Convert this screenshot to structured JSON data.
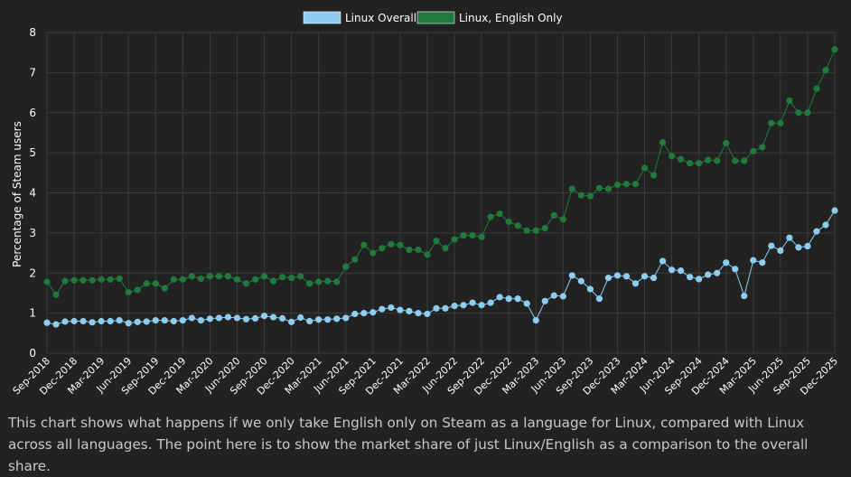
{
  "caption": "This chart shows what happens if we only take English only on Steam as a language for Linux, compared with Linux across all languages. The point here is to show the market share of just Linux/English as a comparison to the overall share.",
  "colors": {
    "background": "#222222",
    "grid": "#3a3a3a",
    "text": "#ffffff",
    "series_overall": "#8ecdf2",
    "series_english": "#1f7a3c"
  },
  "chart_data": {
    "type": "line",
    "title": "",
    "xlabel": "",
    "ylabel": "Percentage of Steam users",
    "ylim": [
      0,
      8
    ],
    "yticks": [
      "0",
      "1",
      "2",
      "3",
      "4",
      "5",
      "6",
      "7",
      "8"
    ],
    "grid": true,
    "legend_position": "top-center",
    "x": [
      "Sep-2018",
      "Oct-2018",
      "Nov-2018",
      "Dec-2018",
      "Jan-2019",
      "Feb-2019",
      "Mar-2019",
      "Apr-2019",
      "May-2019",
      "Jun-2019",
      "Jul-2019",
      "Aug-2019",
      "Sep-2019",
      "Oct-2019",
      "Nov-2019",
      "Dec-2019",
      "Jan-2020",
      "Feb-2020",
      "Mar-2020",
      "Apr-2020",
      "May-2020",
      "Jun-2020",
      "Jul-2020",
      "Aug-2020",
      "Sep-2020",
      "Oct-2020",
      "Nov-2020",
      "Dec-2020",
      "Jan-2021",
      "Feb-2021",
      "Mar-2021",
      "Apr-2021",
      "May-2021",
      "Jun-2021",
      "Jul-2021",
      "Aug-2021",
      "Sep-2021",
      "Oct-2021",
      "Nov-2021",
      "Dec-2021",
      "Jan-2022",
      "Feb-2022",
      "Mar-2022",
      "Apr-2022",
      "May-2022",
      "Jun-2022",
      "Jul-2022",
      "Aug-2022",
      "Sep-2022",
      "Oct-2022",
      "Nov-2022",
      "Dec-2022",
      "Jan-2023",
      "Feb-2023",
      "Mar-2023",
      "Apr-2023",
      "May-2023",
      "Jun-2023",
      "Jul-2023",
      "Aug-2023",
      "Sep-2023",
      "Oct-2023",
      "Nov-2023",
      "Dec-2023",
      "Jan-2024",
      "Feb-2024",
      "Mar-2024",
      "Apr-2024",
      "May-2024",
      "Jun-2024",
      "Jul-2024",
      "Aug-2024",
      "Sep-2024",
      "Oct-2024",
      "Nov-2024",
      "Dec-2024",
      "Jan-2025",
      "Feb-2025",
      "Mar-2025",
      "Apr-2025",
      "May-2025",
      "Jun-2025",
      "Jul-2025",
      "Aug-2025",
      "Sep-2025",
      "Oct-2025",
      "Nov-2025",
      "Dec-2025"
    ],
    "xtick_labels": [
      "Sep-2018",
      "Dec-2018",
      "Mar-2019",
      "Jun-2019",
      "Sep-2019",
      "Dec-2019",
      "Mar-2020",
      "Jun-2020",
      "Sep-2020",
      "Dec-2020",
      "Mar-2021",
      "Jun-2021",
      "Sep-2021",
      "Dec-2021",
      "Mar-2022",
      "Jun-2022",
      "Sep-2022",
      "Dec-2022",
      "Mar-2023",
      "Jun-2023",
      "Sep-2023",
      "Dec-2023",
      "Mar-2024",
      "Jun-2024",
      "Sep-2024",
      "Dec-2024",
      "Mar-2025",
      "Jun-2025",
      "Sep-2025",
      "Dec-2025"
    ],
    "series": [
      {
        "name": "Linux Overall",
        "color": "#8ecdf2",
        "values": [
          0.76,
          0.72,
          0.79,
          0.8,
          0.8,
          0.77,
          0.8,
          0.8,
          0.82,
          0.75,
          0.78,
          0.79,
          0.82,
          0.82,
          0.8,
          0.82,
          0.88,
          0.82,
          0.86,
          0.88,
          0.9,
          0.88,
          0.85,
          0.87,
          0.93,
          0.9,
          0.87,
          0.78,
          0.89,
          0.8,
          0.84,
          0.84,
          0.86,
          0.88,
          0.98,
          1.0,
          1.02,
          1.1,
          1.14,
          1.08,
          1.05,
          1.0,
          0.98,
          1.12,
          1.12,
          1.18,
          1.2,
          1.26,
          1.2,
          1.26,
          1.4,
          1.36,
          1.36,
          1.24,
          0.82,
          1.3,
          1.44,
          1.42,
          1.94,
          1.8,
          1.6,
          1.36,
          1.88,
          1.94,
          1.92,
          1.74,
          1.92,
          1.88,
          2.3,
          2.08,
          2.06,
          1.9,
          1.85,
          1.96,
          2.0,
          2.26,
          2.1,
          1.43,
          2.32,
          2.26,
          2.68,
          2.56,
          2.88,
          2.64,
          2.67,
          3.04,
          3.2,
          3.56
        ]
      },
      {
        "name": "Linux, English Only",
        "color": "#1f7a3c",
        "values": [
          1.78,
          1.46,
          1.8,
          1.82,
          1.82,
          1.82,
          1.84,
          1.84,
          1.86,
          1.52,
          1.58,
          1.74,
          1.74,
          1.62,
          1.84,
          1.84,
          1.92,
          1.86,
          1.92,
          1.92,
          1.92,
          1.84,
          1.74,
          1.84,
          1.92,
          1.8,
          1.9,
          1.88,
          1.92,
          1.74,
          1.78,
          1.8,
          1.78,
          2.16,
          2.34,
          2.7,
          2.5,
          2.62,
          2.72,
          2.7,
          2.58,
          2.58,
          2.46,
          2.8,
          2.62,
          2.84,
          2.94,
          2.94,
          2.9,
          3.4,
          3.48,
          3.28,
          3.18,
          3.06,
          3.06,
          3.12,
          3.44,
          3.34,
          4.1,
          3.94,
          3.92,
          4.12,
          4.1,
          4.2,
          4.22,
          4.22,
          4.62,
          4.44,
          5.26,
          4.92,
          4.84,
          4.74,
          4.74,
          4.82,
          4.8,
          5.24,
          4.8,
          4.8,
          5.04,
          5.14,
          5.74,
          5.74,
          6.3,
          6.0,
          6.0,
          6.6,
          7.06,
          7.58
        ]
      }
    ]
  }
}
